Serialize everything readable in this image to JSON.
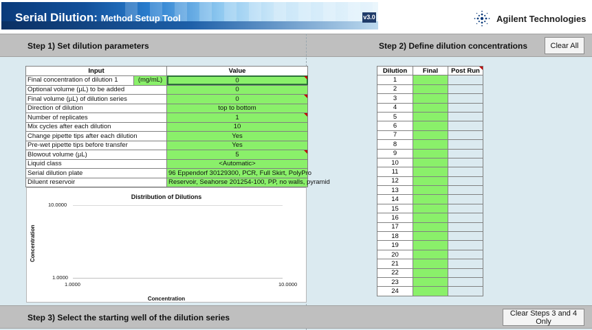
{
  "header": {
    "title": "Serial Dilution:",
    "subtitle": "Method Setup Tool",
    "version": "v3.0",
    "company": "Agilent Technologies"
  },
  "step1": {
    "label": "Step 1) Set dilution parameters"
  },
  "step2": {
    "label": "Step 2) Define dilution concentrations",
    "clear_all_label": "Clear All"
  },
  "step3": {
    "label": "Step 3) Select the starting well of the dilution series",
    "clear_label": "Clear Steps 3 and 4 Only"
  },
  "params": {
    "col_input": "Input",
    "col_value": "Value",
    "unit": "(mg/mL)",
    "rows": [
      {
        "label": "Final concentration of dilution 1",
        "value": "0"
      },
      {
        "label": "Optional volume (µL) to be added",
        "value": "0"
      },
      {
        "label": "Final volume (µL) of dilution series",
        "value": "0"
      },
      {
        "label": "Direction of dilution",
        "value": "top to bottom"
      },
      {
        "label": "Number of replicates",
        "value": "1"
      },
      {
        "label": "Mix cycles after each dilution",
        "value": "10"
      },
      {
        "label": "Change pipette tips after each dilution",
        "value": "Yes"
      },
      {
        "label": "Pre-wet pipette tips before transfer",
        "value": "Yes"
      },
      {
        "label": "Blowout volume (µL)",
        "value": "5"
      },
      {
        "label": "Liquid class",
        "value": "<Automatic>"
      },
      {
        "label": "Serial dilution plate",
        "value": "96 Eppendorf 30129300, PCR, Full Skirt, PolyPro"
      },
      {
        "label": "Diluent reservoir",
        "value": "Reservoir, Seahorse 201254-100, PP, no walls, pyramid"
      }
    ]
  },
  "chart_data": {
    "type": "scatter",
    "title": "Distribution of Dilutions",
    "xlabel": "Concentration",
    "ylabel": "Concentration",
    "xlim": [
      1,
      10
    ],
    "ylim": [
      1,
      10
    ],
    "x_ticks": [
      "1.0000",
      "10.0000"
    ],
    "y_ticks": [
      "10.0000",
      "1.0000"
    ],
    "log_scale": true,
    "grid": true,
    "series": []
  },
  "dilutions": {
    "col_dilution": "Dilution",
    "col_final": "Final",
    "col_post": "Post Run",
    "rows": [
      "1",
      "2",
      "3",
      "4",
      "5",
      "6",
      "7",
      "8",
      "9",
      "10",
      "11",
      "12",
      "13",
      "14",
      "15",
      "16",
      "17",
      "18",
      "19",
      "20",
      "21",
      "22",
      "23",
      "24"
    ]
  },
  "colors": {
    "input_green": "#8af06a",
    "banner_blue": "#12509a",
    "bar_gray": "#bfbfbf"
  }
}
